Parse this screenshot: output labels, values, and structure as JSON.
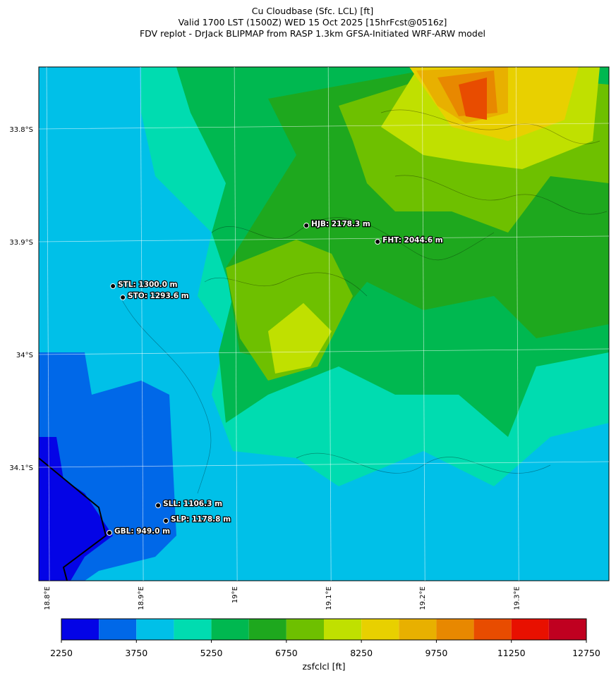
{
  "title": [
    "Cu Cloudbase (Sfc. LCL) [ft]",
    "Valid 1700 LST (1500Z) WED 15 Oct 2025 [15hrFcst@0516z]",
    "FDV replot - DrJack BLIPMAP from RASP 1.3km GFSA-Initiated WRF-ARW model"
  ],
  "map": {
    "xlim": [
      18.7917,
      19.399
    ],
    "ylim": [
      -34.2006,
      -33.745
    ],
    "xticks": [
      {
        "value": 18.8,
        "label": "18.8°E"
      },
      {
        "value": 18.9,
        "label": "18.9°E"
      },
      {
        "value": 19.0,
        "label": "19°E"
      },
      {
        "value": 19.1,
        "label": "19.1°E"
      },
      {
        "value": 19.2,
        "label": "19.2°E"
      },
      {
        "value": 19.3,
        "label": "19.3°E"
      }
    ],
    "yticks": [
      {
        "value": -33.8,
        "label": "33.8°S"
      },
      {
        "value": -33.9,
        "label": "33.9°S"
      },
      {
        "value": -34.0,
        "label": "34°S"
      },
      {
        "value": -34.1,
        "label": "34.1°S"
      }
    ],
    "stations": [
      {
        "label": "HJB: 2178.3 m",
        "lon": 19.0767,
        "lat": -33.8856
      },
      {
        "label": "FHT: 2044.6 m",
        "lon": 19.1526,
        "lat": -33.9
      },
      {
        "label": "STL: 1300.0 m",
        "lon": 18.8707,
        "lat": -33.9394
      },
      {
        "label": "STO: 1293.6 m",
        "lon": 18.8812,
        "lat": -33.9494
      },
      {
        "label": "SLL: 1106.3 m",
        "lon": 18.9188,
        "lat": -34.1338
      },
      {
        "label": "SLP: 1178.8 m",
        "lon": 18.9271,
        "lat": -34.1475
      },
      {
        "label": "GBL: 949.0 m",
        "lon": 18.8669,
        "lat": -34.1581
      }
    ]
  },
  "colorbar": {
    "label": "zsfclcl [ft]",
    "lim": [
      2250,
      12750
    ],
    "bounds": [
      2250,
      3000,
      3750,
      4500,
      5250,
      6000,
      6750,
      7500,
      8250,
      9000,
      9750,
      10500,
      11250,
      12000,
      12750
    ],
    "colors": [
      "#0404e6",
      "#0068e8",
      "#00c0e8",
      "#00dcb0",
      "#00b850",
      "#1ea81e",
      "#6ec000",
      "#c0e000",
      "#e8d000",
      "#e8b000",
      "#e88800",
      "#e84c00",
      "#e81000",
      "#c00020"
    ],
    "ticks": [
      2250,
      3750,
      5250,
      6750,
      8250,
      9750,
      11250,
      12750
    ]
  }
}
